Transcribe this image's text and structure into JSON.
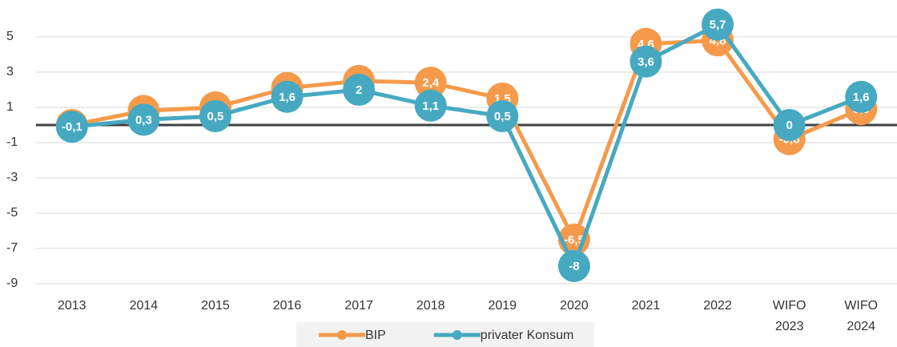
{
  "chart_data": {
    "type": "line",
    "categories": [
      "2013",
      "2014",
      "2015",
      "2016",
      "2017",
      "2018",
      "2019",
      "2020",
      "2021",
      "2022",
      "WIFO 2023",
      "WIFO 2024"
    ],
    "series": [
      {
        "name": "BIP",
        "color": "#f59a4b",
        "values": [
          0,
          0.8,
          1,
          2.1,
          2.5,
          2.4,
          1.5,
          -6.5,
          4.6,
          4.8,
          -0.8,
          0.9
        ],
        "value_labels": [
          "0",
          "0,8",
          "1",
          "2,1",
          "2,5",
          "2,4",
          "1,5",
          "-6,5",
          "4,6",
          "4,8",
          "-0,8",
          "0,9"
        ]
      },
      {
        "name": "privater Konsum",
        "color": "#46a9c1",
        "values": [
          -0.1,
          0.3,
          0.5,
          1.6,
          2,
          1.1,
          0.5,
          -8,
          3.6,
          5.7,
          0,
          1.6
        ],
        "value_labels": [
          "-0,1",
          "0,3",
          "0,5",
          "1,6",
          "2",
          "1,1",
          "0,5",
          "-8",
          "3,6",
          "5,7",
          "0",
          "1,6"
        ]
      }
    ],
    "ylim": [
      -9,
      7
    ],
    "yticks": [
      -9,
      -7,
      -5,
      -3,
      -1,
      1,
      3,
      5
    ],
    "grid": true,
    "legend": "bottom"
  }
}
